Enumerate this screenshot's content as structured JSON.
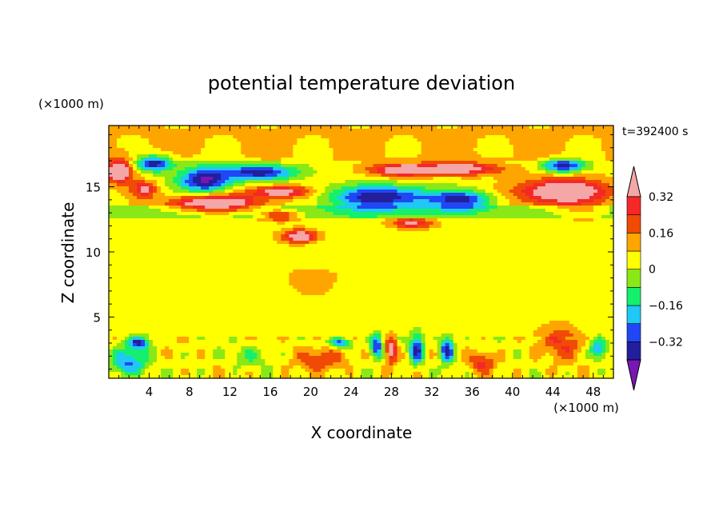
{
  "chart_data": {
    "type": "heatmap",
    "title": "potential temperature deviation",
    "xlabel": "X coordinate",
    "ylabel": "Z coordinate",
    "x_unit": "(×1000 m)",
    "y_unit": "(×1000 m)",
    "time_label": "t=392400 s",
    "xlim": [
      0,
      50
    ],
    "ylim": [
      0.3,
      19.7
    ],
    "x_ticks": [
      4,
      8,
      12,
      16,
      20,
      24,
      28,
      32,
      36,
      40,
      44,
      48
    ],
    "y_ticks": [
      5,
      10,
      15
    ],
    "grid": false,
    "colorbar": {
      "position": "right",
      "levels": [
        -0.4,
        -0.32,
        -0.24,
        -0.16,
        -0.08,
        0,
        0.08,
        0.16,
        0.24,
        0.32,
        0.4
      ],
      "labels": [
        "0.32",
        "0.16",
        "0",
        "−0.16",
        "−0.32"
      ],
      "label_values": [
        0.32,
        0.16,
        0,
        -0.16,
        -0.32
      ],
      "colors": [
        "#7a16b4",
        "#231e9c",
        "#2047f5",
        "#1fc8f5",
        "#14f06e",
        "#8ae817",
        "#ffff00",
        "#ffa500",
        "#f04a05",
        "#f52828",
        "#f5a6a6"
      ],
      "extend": "both"
    },
    "features": [
      {
        "x": 1,
        "z": 16.2,
        "rx": 1.4,
        "rz": 0.9,
        "v": 0.45
      },
      {
        "x": 4.5,
        "z": 16.8,
        "rx": 1.8,
        "rz": 0.6,
        "v": -0.42
      },
      {
        "x": 3.5,
        "z": 14.8,
        "rx": 1.2,
        "rz": 0.6,
        "v": 0.3
      },
      {
        "x": 9.5,
        "z": 15.5,
        "rx": 2.6,
        "rz": 1.0,
        "v": -0.45
      },
      {
        "x": 10.5,
        "z": 13.7,
        "rx": 4.5,
        "rz": 0.7,
        "v": 0.45
      },
      {
        "x": 15,
        "z": 16.1,
        "rx": 3.5,
        "rz": 0.6,
        "v": -0.42
      },
      {
        "x": 17,
        "z": 14.6,
        "rx": 3.0,
        "rz": 0.45,
        "v": 0.36
      },
      {
        "x": 17,
        "z": 12.8,
        "rx": 1.8,
        "rz": 0.4,
        "v": 0.3
      },
      {
        "x": 19,
        "z": 11.2,
        "rx": 1.6,
        "rz": 0.5,
        "v": 0.42
      },
      {
        "x": 27,
        "z": 14.2,
        "rx": 5.0,
        "rz": 0.9,
        "v": -0.44
      },
      {
        "x": 35,
        "z": 14.0,
        "rx": 3.0,
        "rz": 0.7,
        "v": -0.38
      },
      {
        "x": 29,
        "z": 16.3,
        "rx": 3.0,
        "rz": 0.5,
        "v": 0.4
      },
      {
        "x": 35,
        "z": 16.4,
        "rx": 4.0,
        "rz": 0.5,
        "v": 0.36
      },
      {
        "x": 30,
        "z": 12.2,
        "rx": 2.0,
        "rz": 0.4,
        "v": 0.3
      },
      {
        "x": 45,
        "z": 16.6,
        "rx": 2.0,
        "rz": 0.5,
        "v": -0.42
      },
      {
        "x": 45,
        "z": 14.6,
        "rx": 4.5,
        "rz": 1.0,
        "v": 0.45
      },
      {
        "x": 47,
        "z": 13.0,
        "rx": 3.0,
        "rz": 0.5,
        "v": 0.1
      },
      {
        "x": 20,
        "z": 8.0,
        "rx": 8.0,
        "rz": 1.5,
        "v": 0.04
      },
      {
        "x": 45,
        "z": 3.0,
        "rx": 2.0,
        "rz": 1.3,
        "v": 0.2
      },
      {
        "x": 37,
        "z": 1.5,
        "rx": 1.2,
        "rz": 0.8,
        "v": 0.22
      },
      {
        "x": 21,
        "z": 1.8,
        "rx": 2.5,
        "rz": 0.9,
        "v": 0.18
      },
      {
        "x": 2,
        "z": 1.5,
        "rx": 1.8,
        "rz": 1.0,
        "v": -0.3
      },
      {
        "x": 3,
        "z": 3.0,
        "rx": 1.0,
        "rz": 0.5,
        "v": -0.38
      },
      {
        "x": 26.5,
        "z": 2.8,
        "rx": 0.6,
        "rz": 0.9,
        "v": -0.38
      },
      {
        "x": 28,
        "z": 2.5,
        "rx": 0.5,
        "rz": 1.0,
        "v": 0.38
      },
      {
        "x": 30.5,
        "z": 2.5,
        "rx": 0.7,
        "rz": 1.1,
        "v": -0.38
      },
      {
        "x": 33.5,
        "z": 2.5,
        "rx": 0.7,
        "rz": 1.0,
        "v": -0.4
      },
      {
        "x": 48.5,
        "z": 2.5,
        "rx": 0.8,
        "rz": 0.8,
        "v": -0.3
      },
      {
        "x": 23,
        "z": 3.0,
        "rx": 1.0,
        "rz": 0.4,
        "v": -0.35
      },
      {
        "x": 14,
        "z": 2.0,
        "rx": 2.0,
        "rz": 0.8,
        "v": -0.12
      }
    ]
  }
}
